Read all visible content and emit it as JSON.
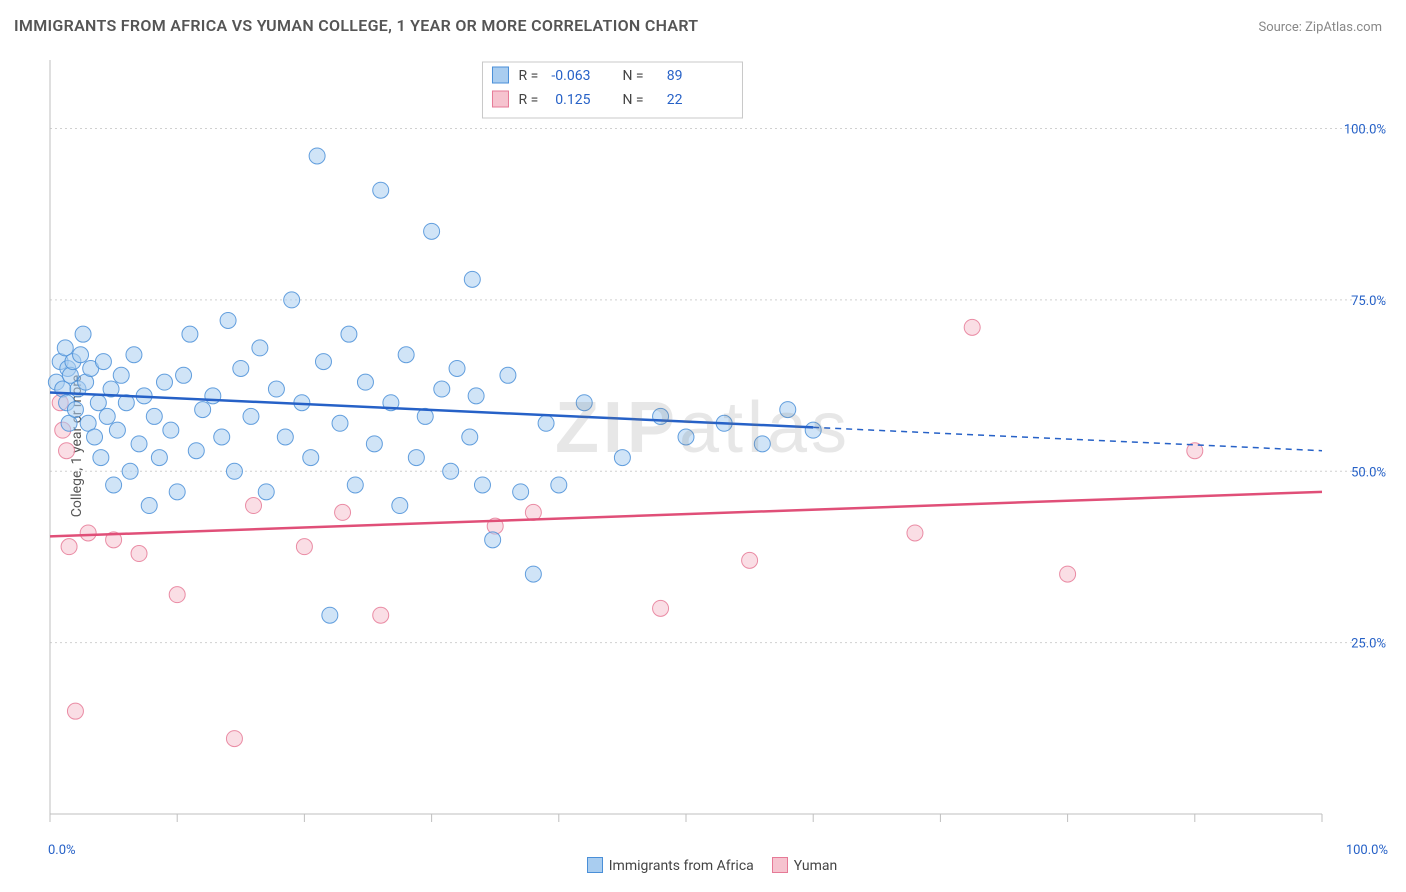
{
  "title": "IMMIGRANTS FROM AFRICA VS YUMAN COLLEGE, 1 YEAR OR MORE CORRELATION CHART",
  "source": "Source: ZipAtlas.com",
  "ylabel": "College, 1 year or more",
  "watermark": "ZIPatlas",
  "chart": {
    "type": "scatter",
    "background_color": "#ffffff",
    "grid_color": "#d0d0d0",
    "axis_color": "#bfbfbf",
    "label_color": "#2661c7",
    "xlim": [
      0,
      100
    ],
    "ylim": [
      0,
      110
    ],
    "x_ticks": [
      0,
      10,
      20,
      30,
      40,
      50,
      60,
      70,
      80,
      90,
      100
    ],
    "x_tick_labels": {
      "0": "0.0%",
      "100": "100.0%"
    },
    "y_grid": [
      25,
      50,
      75,
      100
    ],
    "y_grid_labels": [
      "25.0%",
      "50.0%",
      "75.0%",
      "100.0%"
    ],
    "marker_radius": 8,
    "marker_opacity": 0.55,
    "marker_stroke_opacity": 0.85,
    "trend_width": 2.5,
    "trend_dash": "6 5"
  },
  "series": [
    {
      "key": "africa",
      "label": "Immigrants from Africa",
      "fill": "#a9cdf0",
      "stroke": "#4a8fd8",
      "trend_color": "#2661c7",
      "R": "-0.063",
      "N": "89",
      "trend": {
        "y_at_x0": 61.5,
        "y_at_x100": 53.0,
        "solid_until_x": 60
      },
      "points": [
        [
          0.5,
          63
        ],
        [
          0.8,
          66
        ],
        [
          1.0,
          62
        ],
        [
          1.2,
          68
        ],
        [
          1.3,
          60
        ],
        [
          1.4,
          65
        ],
        [
          1.5,
          57
        ],
        [
          1.6,
          64
        ],
        [
          1.8,
          66
        ],
        [
          2.0,
          59
        ],
        [
          2.2,
          62
        ],
        [
          2.4,
          67
        ],
        [
          2.6,
          70
        ],
        [
          2.8,
          63
        ],
        [
          3.0,
          57
        ],
        [
          3.2,
          65
        ],
        [
          3.5,
          55
        ],
        [
          3.8,
          60
        ],
        [
          4.0,
          52
        ],
        [
          4.2,
          66
        ],
        [
          4.5,
          58
        ],
        [
          4.8,
          62
        ],
        [
          5.0,
          48
        ],
        [
          5.3,
          56
        ],
        [
          5.6,
          64
        ],
        [
          6.0,
          60
        ],
        [
          6.3,
          50
        ],
        [
          6.6,
          67
        ],
        [
          7.0,
          54
        ],
        [
          7.4,
          61
        ],
        [
          7.8,
          45
        ],
        [
          8.2,
          58
        ],
        [
          8.6,
          52
        ],
        [
          9.0,
          63
        ],
        [
          9.5,
          56
        ],
        [
          10.0,
          47
        ],
        [
          10.5,
          64
        ],
        [
          11.0,
          70
        ],
        [
          11.5,
          53
        ],
        [
          12.0,
          59
        ],
        [
          12.8,
          61
        ],
        [
          13.5,
          55
        ],
        [
          14.0,
          72
        ],
        [
          14.5,
          50
        ],
        [
          15.0,
          65
        ],
        [
          15.8,
          58
        ],
        [
          16.5,
          68
        ],
        [
          17.0,
          47
        ],
        [
          17.8,
          62
        ],
        [
          18.5,
          55
        ],
        [
          19.0,
          75
        ],
        [
          19.8,
          60
        ],
        [
          20.5,
          52
        ],
        [
          21.0,
          96
        ],
        [
          21.5,
          66
        ],
        [
          22.0,
          29
        ],
        [
          22.8,
          57
        ],
        [
          23.5,
          70
        ],
        [
          24.0,
          48
        ],
        [
          24.8,
          63
        ],
        [
          25.5,
          54
        ],
        [
          26.0,
          91
        ],
        [
          26.8,
          60
        ],
        [
          27.5,
          45
        ],
        [
          28.0,
          67
        ],
        [
          28.8,
          52
        ],
        [
          29.5,
          58
        ],
        [
          30.0,
          85
        ],
        [
          30.8,
          62
        ],
        [
          31.5,
          50
        ],
        [
          32.0,
          65
        ],
        [
          33.0,
          55
        ],
        [
          33.2,
          78
        ],
        [
          33.5,
          61
        ],
        [
          34.0,
          48
        ],
        [
          34.8,
          40
        ],
        [
          36.0,
          64
        ],
        [
          37.0,
          47
        ],
        [
          38.0,
          35
        ],
        [
          39.0,
          57
        ],
        [
          40.0,
          48
        ],
        [
          42.0,
          60
        ],
        [
          45.0,
          52
        ],
        [
          48.0,
          58
        ],
        [
          50.0,
          55
        ],
        [
          53.0,
          57
        ],
        [
          56.0,
          54
        ],
        [
          58.0,
          59
        ],
        [
          60.0,
          56
        ]
      ]
    },
    {
      "key": "yuman",
      "label": "Yuman",
      "fill": "#f6c3cf",
      "stroke": "#e67a97",
      "trend_color": "#e04f78",
      "R": "0.125",
      "N": "22",
      "trend": {
        "y_at_x0": 40.5,
        "y_at_x100": 47.0,
        "solid_until_x": 100
      },
      "points": [
        [
          0.8,
          60
        ],
        [
          1.0,
          56
        ],
        [
          1.3,
          53
        ],
        [
          1.5,
          39
        ],
        [
          2.0,
          15
        ],
        [
          3.0,
          41
        ],
        [
          5.0,
          40
        ],
        [
          7.0,
          38
        ],
        [
          10.0,
          32
        ],
        [
          14.5,
          11
        ],
        [
          16.0,
          45
        ],
        [
          20.0,
          39
        ],
        [
          23.0,
          44
        ],
        [
          26.0,
          29
        ],
        [
          35.0,
          42
        ],
        [
          38.0,
          44
        ],
        [
          48.0,
          30
        ],
        [
          55.0,
          37
        ],
        [
          68.0,
          41
        ],
        [
          72.5,
          71
        ],
        [
          80.0,
          35
        ],
        [
          90.0,
          53
        ]
      ]
    }
  ],
  "legend_top": {
    "rows": [
      {
        "series": 0,
        "r_label": "R =",
        "n_label": "N ="
      },
      {
        "series": 1,
        "r_label": "R =",
        "n_label": "N ="
      }
    ]
  },
  "legend_bottom": [
    {
      "series": 0
    },
    {
      "series": 1
    }
  ]
}
